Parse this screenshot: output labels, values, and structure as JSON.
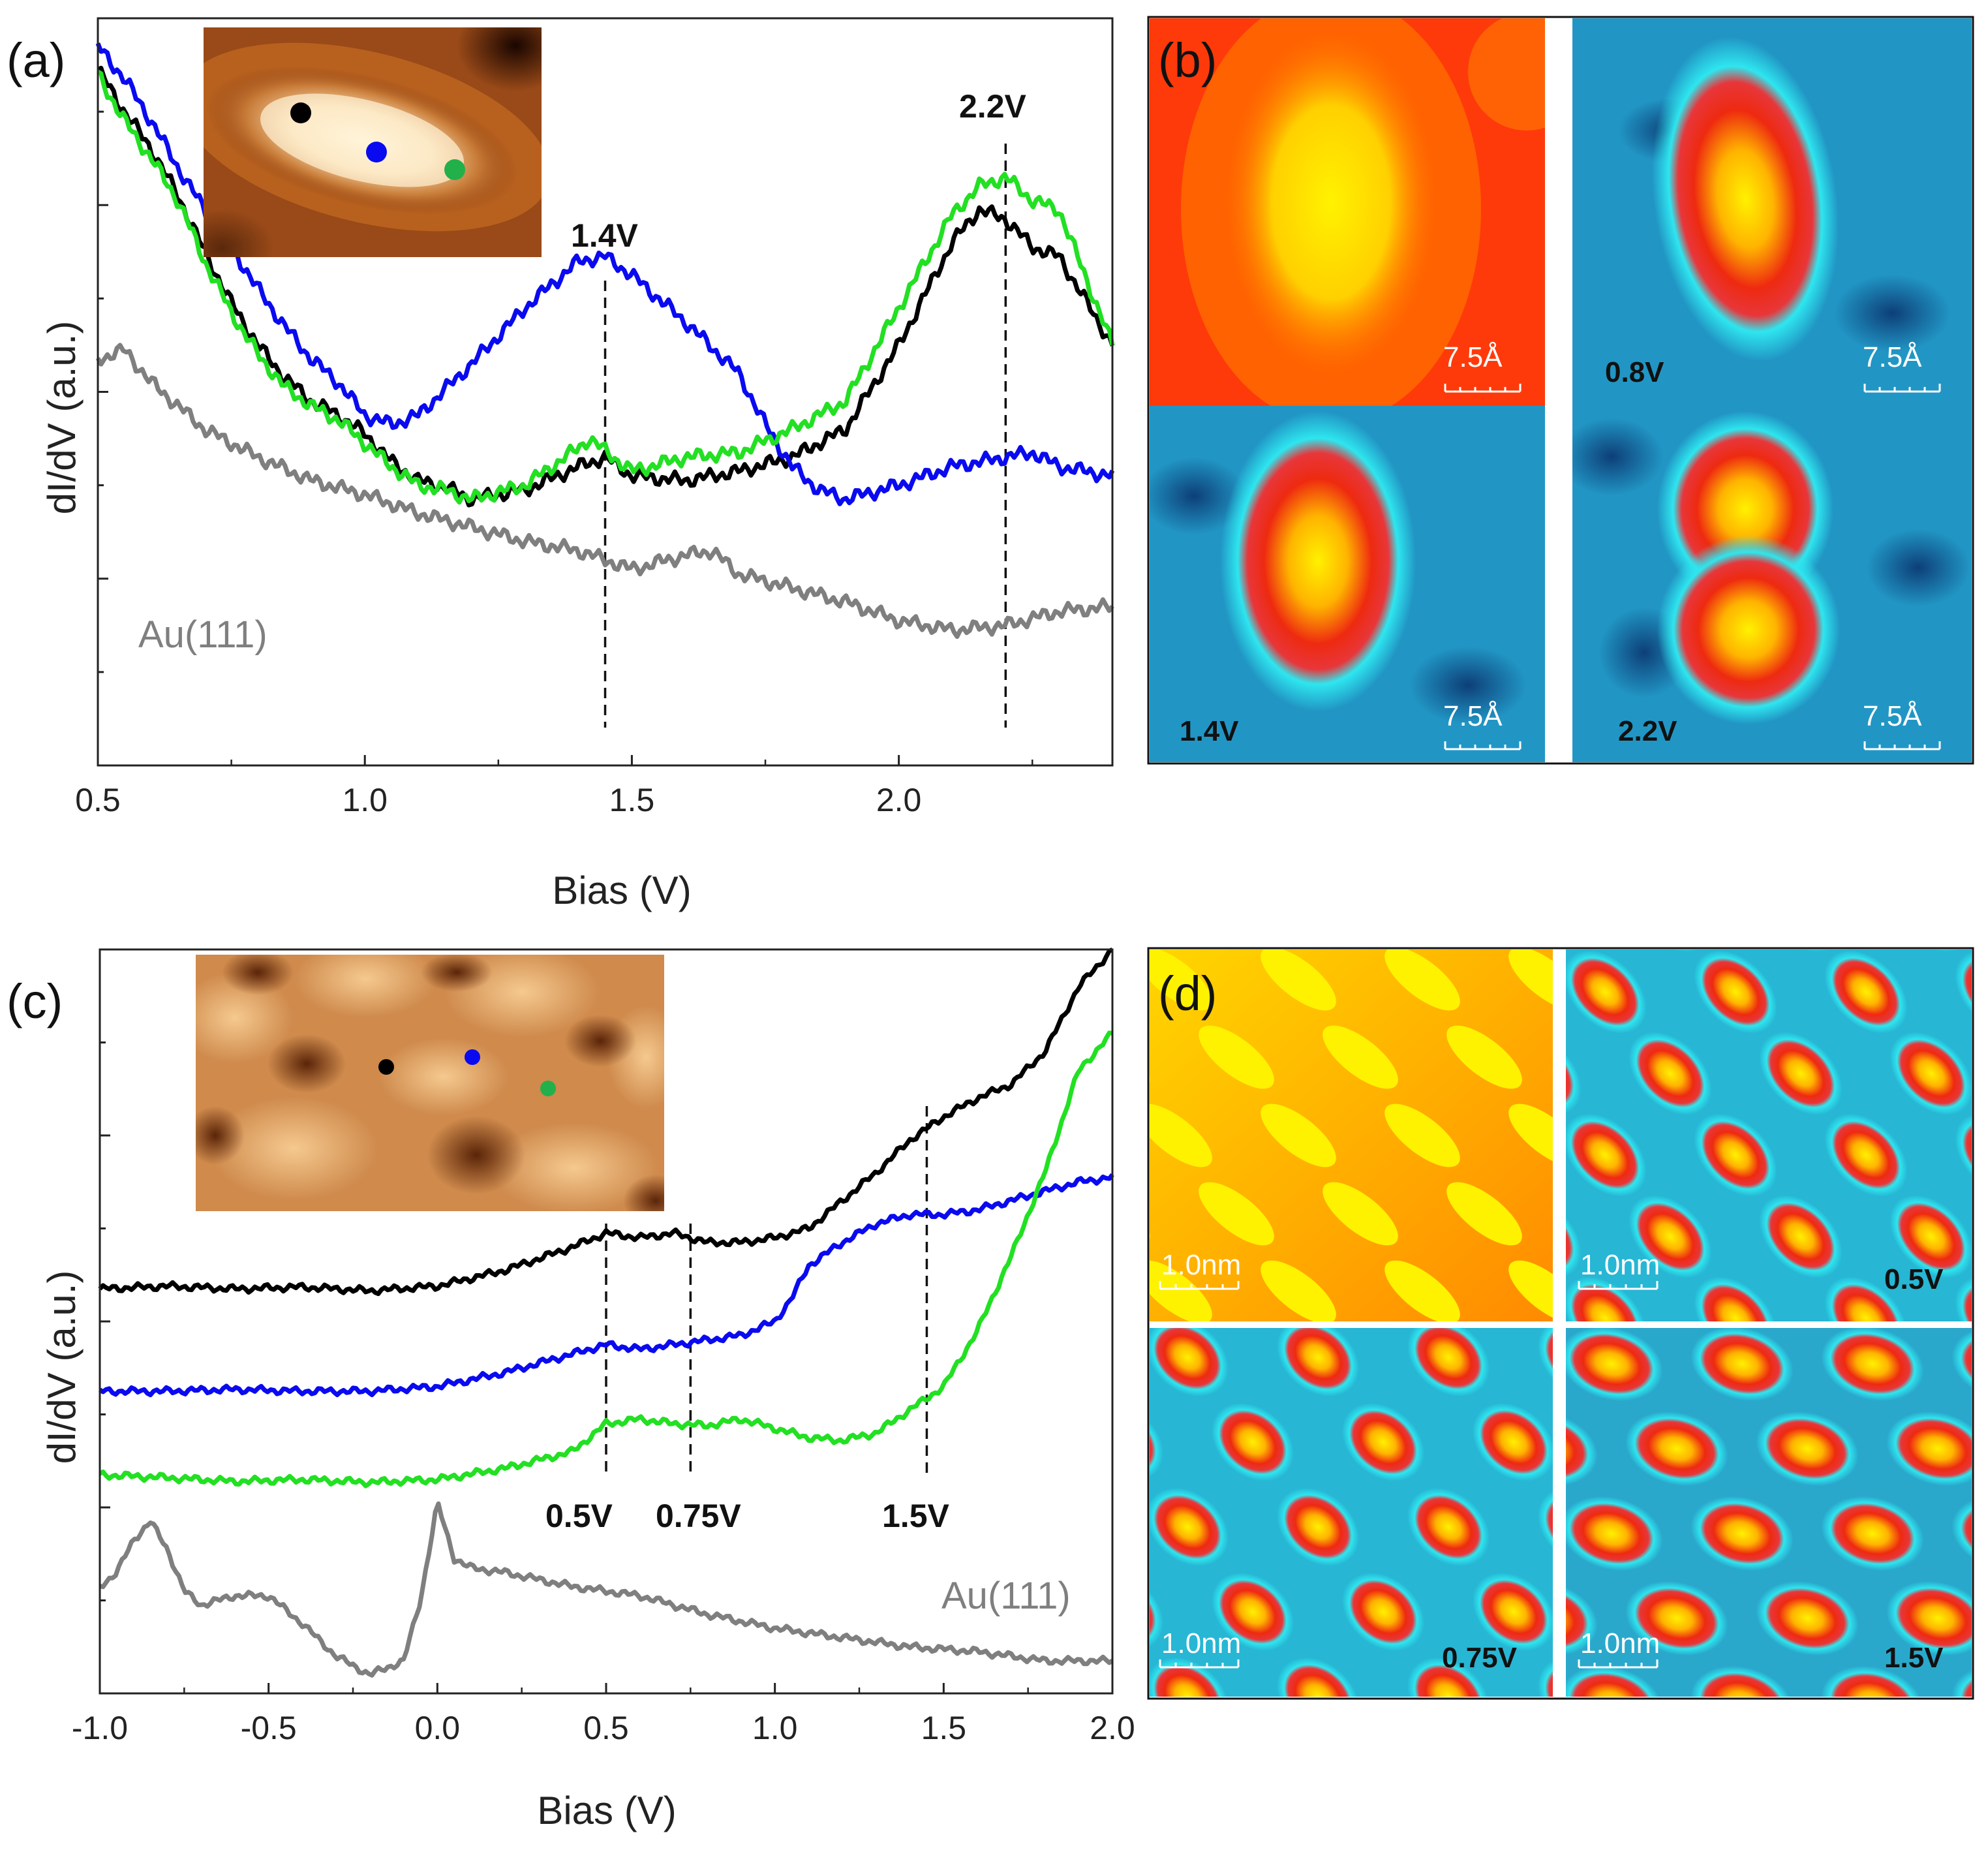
{
  "colors": {
    "black_series": "#000000",
    "blue_series": "#0a0af0",
    "green_series": "#22e022",
    "gold_series": "#7f7f7f",
    "stm_topo_dark": "#4a1a04",
    "stm_topo_light": "#fff6e0",
    "map_background": "#1d8fbf",
    "map_glow": "#29e6ef",
    "map_hot": "#e81a12",
    "map_peak": "#fff100"
  },
  "chart_data": [
    {
      "panel": "(a)",
      "type": "line",
      "xlabel": "Bias (V)",
      "ylabel": "dI/dV (a.u.)",
      "xlim": [
        0.5,
        2.4
      ],
      "ylim": [
        0,
        8
      ],
      "x_ticks": [
        "0.5",
        "1.0",
        "1.5",
        "2.0"
      ],
      "x_tick_values": [
        0.5,
        1.0,
        1.5,
        2.0
      ],
      "series": [
        {
          "name": "black",
          "x": [
            0.5,
            0.55,
            0.6,
            0.65,
            0.7,
            0.75,
            0.8,
            0.85,
            0.9,
            0.95,
            1.0,
            1.05,
            1.1,
            1.15,
            1.2,
            1.3,
            1.4,
            1.45,
            1.5,
            1.6,
            1.7,
            1.8,
            1.9,
            2.0,
            2.1,
            2.15,
            2.2,
            2.25,
            2.3,
            2.4
          ],
          "y": [
            7.45,
            7.0,
            6.6,
            6.1,
            5.5,
            4.95,
            4.5,
            4.15,
            3.9,
            3.75,
            3.55,
            3.25,
            3.05,
            2.98,
            2.85,
            2.95,
            3.2,
            3.3,
            3.1,
            3.05,
            3.15,
            3.3,
            3.6,
            4.5,
            5.6,
            5.95,
            5.85,
            5.55,
            5.45,
            4.5
          ]
        },
        {
          "name": "blue",
          "x": [
            0.5,
            0.55,
            0.6,
            0.65,
            0.7,
            0.75,
            0.8,
            0.85,
            0.9,
            0.95,
            1.0,
            1.05,
            1.1,
            1.2,
            1.3,
            1.4,
            1.45,
            1.5,
            1.6,
            1.7,
            1.75,
            1.8,
            1.85,
            1.9,
            2.0,
            2.1,
            2.2,
            2.25,
            2.3,
            2.4
          ],
          "y": [
            7.7,
            7.35,
            6.9,
            6.4,
            5.95,
            5.55,
            5.1,
            4.7,
            4.35,
            4.1,
            3.75,
            3.65,
            3.75,
            4.3,
            4.9,
            5.4,
            5.45,
            5.25,
            4.75,
            4.2,
            3.65,
            3.2,
            2.95,
            2.85,
            3.0,
            3.2,
            3.3,
            3.35,
            3.2,
            3.1
          ]
        },
        {
          "name": "green",
          "x": [
            0.5,
            0.55,
            0.6,
            0.65,
            0.7,
            0.75,
            0.8,
            0.85,
            0.9,
            0.95,
            1.0,
            1.05,
            1.1,
            1.15,
            1.2,
            1.3,
            1.4,
            1.42,
            1.5,
            1.6,
            1.7,
            1.8,
            1.9,
            2.0,
            2.1,
            2.15,
            2.2,
            2.25,
            2.3,
            2.4
          ],
          "y": [
            7.4,
            6.9,
            6.5,
            6.05,
            5.4,
            4.85,
            4.4,
            4.05,
            3.85,
            3.7,
            3.45,
            3.2,
            3.0,
            2.95,
            2.85,
            3.0,
            3.4,
            3.5,
            3.15,
            3.3,
            3.35,
            3.6,
            3.9,
            4.9,
            5.9,
            6.2,
            6.3,
            6.05,
            5.95,
            4.5
          ]
        },
        {
          "name": "Au(111)",
          "x": [
            0.5,
            0.55,
            0.6,
            0.65,
            0.7,
            0.75,
            0.8,
            0.9,
            1.0,
            1.1,
            1.2,
            1.3,
            1.4,
            1.5,
            1.6,
            1.65,
            1.7,
            1.8,
            1.9,
            2.0,
            2.1,
            2.2,
            2.3,
            2.4
          ],
          "y": [
            4.35,
            4.45,
            4.1,
            3.85,
            3.6,
            3.45,
            3.3,
            3.05,
            2.9,
            2.7,
            2.55,
            2.4,
            2.3,
            2.1,
            2.25,
            2.3,
            2.05,
            1.9,
            1.75,
            1.55,
            1.45,
            1.5,
            1.65,
            1.7
          ]
        }
      ],
      "annotations": [
        {
          "label": "1.4V",
          "x": 1.45
        },
        {
          "label": "2.2V",
          "x": 2.2
        }
      ],
      "series_label": "Au(111)",
      "inset": "STM topograph with black, blue and green measurement points"
    },
    {
      "panel": "(c)",
      "type": "line",
      "xlabel": "Bias (V)",
      "ylabel": "dI/dV (a.u.)",
      "xlim": [
        -1.0,
        2.0
      ],
      "ylim": [
        0,
        8
      ],
      "x_ticks": [
        "-1.0",
        "-0.5",
        "0.0",
        "0.5",
        "1.0",
        "1.5",
        "2.0"
      ],
      "x_tick_values": [
        -1.0,
        -0.5,
        0.0,
        0.5,
        1.0,
        1.5,
        2.0
      ],
      "series": [
        {
          "name": "black",
          "x": [
            -1.0,
            -0.8,
            -0.6,
            -0.4,
            -0.2,
            0.0,
            0.2,
            0.4,
            0.5,
            0.6,
            0.7,
            0.8,
            0.9,
            1.0,
            1.1,
            1.2,
            1.3,
            1.4,
            1.5,
            1.6,
            1.7,
            1.8,
            1.9,
            2.0
          ],
          "y": [
            4.35,
            4.38,
            4.35,
            4.37,
            4.33,
            4.38,
            4.55,
            4.8,
            4.95,
            4.9,
            4.95,
            4.85,
            4.85,
            4.9,
            5.0,
            5.3,
            5.6,
            5.95,
            6.2,
            6.4,
            6.55,
            6.9,
            7.6,
            8.0
          ]
        },
        {
          "name": "blue",
          "x": [
            -1.0,
            -0.8,
            -0.6,
            -0.4,
            -0.2,
            0.0,
            0.2,
            0.4,
            0.5,
            0.6,
            0.7,
            0.8,
            0.9,
            1.0,
            1.05,
            1.1,
            1.2,
            1.3,
            1.4,
            1.5,
            1.6,
            1.7,
            1.8,
            1.9,
            2.0
          ],
          "y": [
            3.25,
            3.25,
            3.27,
            3.25,
            3.25,
            3.3,
            3.45,
            3.65,
            3.75,
            3.7,
            3.75,
            3.8,
            3.85,
            4.0,
            4.25,
            4.6,
            4.85,
            5.05,
            5.15,
            5.15,
            5.2,
            5.3,
            5.4,
            5.5,
            5.55
          ]
        },
        {
          "name": "green",
          "x": [
            -1.0,
            -0.8,
            -0.6,
            -0.4,
            -0.2,
            0.0,
            0.2,
            0.4,
            0.5,
            0.6,
            0.7,
            0.8,
            0.9,
            1.0,
            1.1,
            1.2,
            1.3,
            1.4,
            1.5,
            1.6,
            1.7,
            1.8,
            1.9,
            2.0
          ],
          "y": [
            2.35,
            2.32,
            2.28,
            2.3,
            2.27,
            2.3,
            2.42,
            2.6,
            2.9,
            2.95,
            2.9,
            2.88,
            2.95,
            2.85,
            2.75,
            2.72,
            2.8,
            3.05,
            3.3,
            3.9,
            4.7,
            5.6,
            6.7,
            7.1
          ]
        },
        {
          "name": "Au(111)",
          "x": [
            -1.0,
            -0.95,
            -0.9,
            -0.85,
            -0.8,
            -0.75,
            -0.7,
            -0.6,
            -0.5,
            -0.4,
            -0.3,
            -0.2,
            -0.1,
            -0.05,
            0.0,
            0.05,
            0.1,
            0.2,
            0.4,
            0.6,
            0.8,
            1.0,
            1.2,
            1.4,
            1.6,
            1.8,
            2.0
          ],
          "y": [
            1.15,
            1.3,
            1.65,
            1.85,
            1.55,
            1.1,
            0.95,
            1.05,
            1.05,
            0.75,
            0.4,
            0.2,
            0.35,
            1.0,
            2.05,
            1.45,
            1.35,
            1.3,
            1.15,
            1.05,
            0.85,
            0.7,
            0.6,
            0.5,
            0.45,
            0.35,
            0.35
          ]
        }
      ],
      "annotations": [
        {
          "label": "0.5V",
          "x": 0.5
        },
        {
          "label": "0.75V",
          "x": 0.75
        },
        {
          "label": "1.5V",
          "x": 1.45
        }
      ],
      "series_label": "Au(111)",
      "inset": "STM topograph of molecular lattice with black, blue and green points"
    }
  ],
  "panels": {
    "a": {
      "letter": "(a)",
      "xlabel": "Bias (V)",
      "ylabel": "dI/dV (a.u.)",
      "peak_1": "1.4V",
      "peak_2": "2.2V",
      "au_label": "Au(111)"
    },
    "b": {
      "letter": "(b)",
      "scale_label": "7.5Å",
      "map_labels": [
        "0.8V",
        "1.4V",
        "2.2V"
      ]
    },
    "c": {
      "letter": "(c)",
      "xlabel": "Bias (V)",
      "ylabel": "dI/dV (a.u.)",
      "peak_1": "0.5V",
      "peak_2": "0.75V",
      "peak_3": "1.5V",
      "au_label": "Au(111)"
    },
    "d": {
      "letter": "(d)",
      "scale_label": "1.0nm",
      "map_labels": [
        "0.5V",
        "0.75V",
        "1.5V"
      ]
    }
  }
}
